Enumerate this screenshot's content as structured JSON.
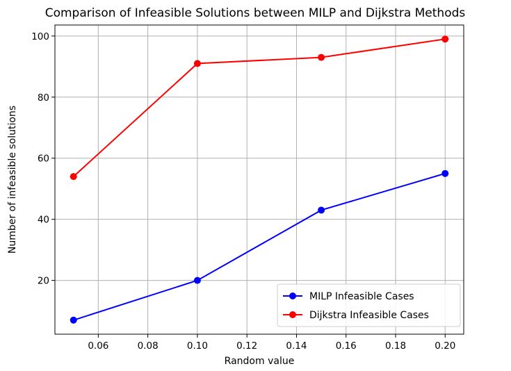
{
  "chart_data": {
    "type": "line",
    "title": "Comparison of Infeasible Solutions between MILP and Dijkstra Methods",
    "xlabel": "Random value",
    "ylabel": "Number of infeasible solutions",
    "x": [
      0.05,
      0.1,
      0.15,
      0.2
    ],
    "xlim": [
      0.0425,
      0.2075
    ],
    "ylim": [
      2.4,
      103.6
    ],
    "xticks": [
      0.06,
      0.08,
      0.1,
      0.12,
      0.14,
      0.16,
      0.18,
      0.2
    ],
    "xtick_labels": [
      "0.06",
      "0.08",
      "0.10",
      "0.12",
      "0.14",
      "0.16",
      "0.18",
      "0.20"
    ],
    "yticks": [
      20,
      40,
      60,
      80,
      100
    ],
    "ytick_labels": [
      "20",
      "40",
      "60",
      "80",
      "100"
    ],
    "grid": true,
    "legend_position": "lower-right",
    "series": [
      {
        "name": "MILP Infeasible Cases",
        "values": [
          7,
          20,
          43,
          55
        ],
        "color": "#0000ff",
        "marker": "circle"
      },
      {
        "name": "Dijkstra Infeasible Cases",
        "values": [
          54,
          91,
          93,
          99
        ],
        "color": "#ff0000",
        "marker": "circle"
      }
    ]
  }
}
